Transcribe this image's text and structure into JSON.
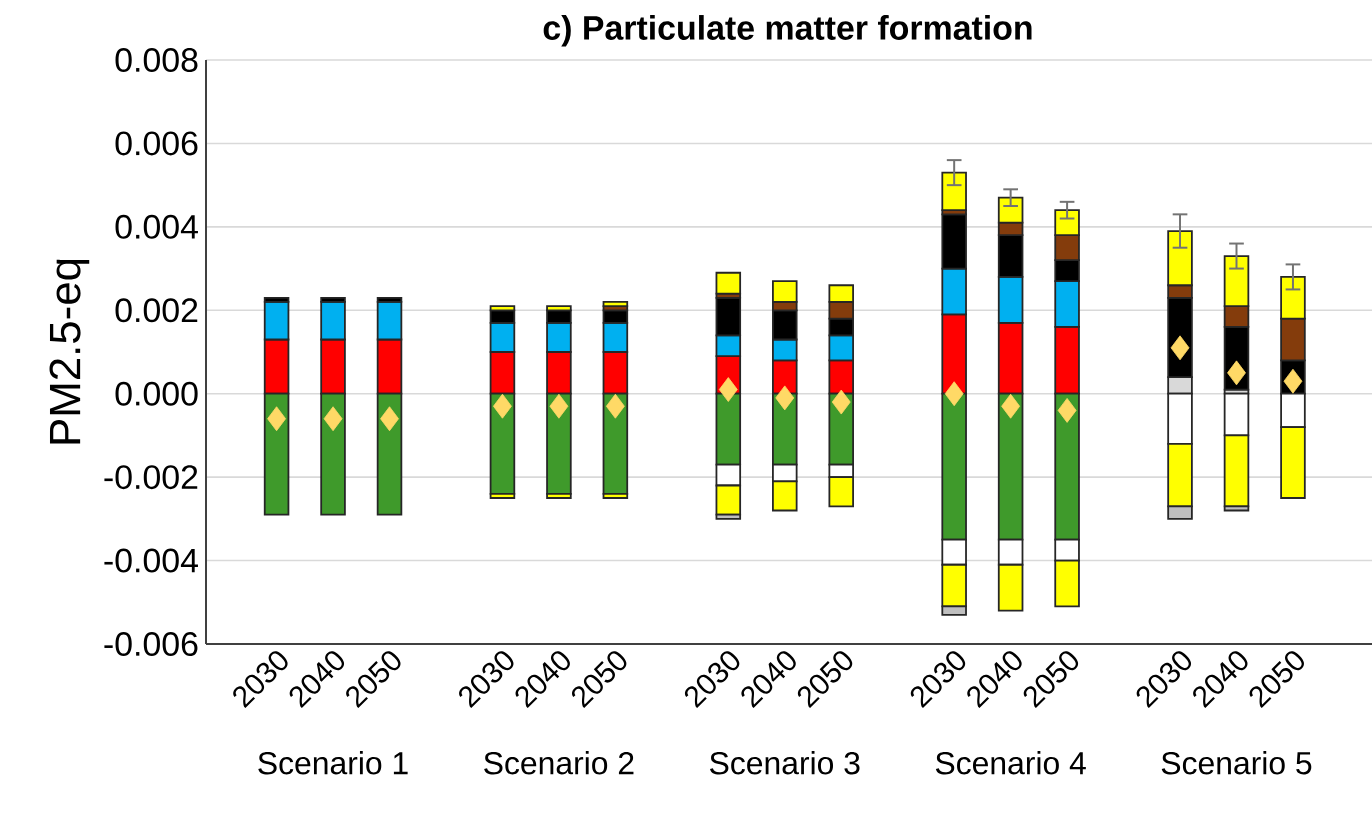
{
  "chart_data": {
    "type": "bar",
    "title": "c) Particulate matter formation",
    "ylabel": "PM2.5-eq",
    "stacked": true,
    "grid": "y",
    "marker": "diamond",
    "categories": [
      "2030",
      "2040",
      "2050",
      "2030",
      "2040",
      "2050",
      "2030",
      "2040",
      "2050",
      "2030",
      "2040",
      "2050",
      "2030",
      "2040",
      "2050"
    ],
    "annotations": [
      "Scenario 1",
      "Scenario 2",
      "Scenario 3",
      "Scenario 4",
      "Scenario 5"
    ],
    "ylim": [
      -0.006,
      0.008
    ],
    "yticks": [
      {
        "value": -0.006,
        "label": "-0.006"
      },
      {
        "value": -0.004,
        "label": "-0.004"
      },
      {
        "value": -0.002,
        "label": "-0.002"
      },
      {
        "value": 0,
        "label": "0.000"
      },
      {
        "value": 0.002,
        "label": "0.002"
      },
      {
        "value": 0.004,
        "label": "0.004"
      },
      {
        "value": 0.006,
        "label": "0.006"
      },
      {
        "value": 0.008,
        "label": "0.008"
      }
    ],
    "series": [
      {
        "color": "#d9d9d9",
        "values": [
          null,
          null,
          null,
          null,
          null,
          null,
          null,
          null,
          null,
          null,
          null,
          null,
          0.0004,
          0.0001,
          null
        ]
      },
      {
        "color": "#ff0000",
        "values": [
          0.0013,
          0.0013,
          0.0013,
          0.001,
          0.001,
          0.001,
          0.0009,
          0.0008,
          0.0008,
          0.0019,
          0.0017,
          0.0016,
          null,
          null,
          null
        ]
      },
      {
        "color": "#00b0f0",
        "values": [
          0.0009,
          0.0009,
          0.0009,
          0.0007,
          0.0007,
          0.0007,
          0.0005,
          0.0005,
          0.0006,
          0.0011,
          0.0011,
          0.0011,
          null,
          null,
          null
        ]
      },
      {
        "color": "#000000",
        "values": [
          0.0001,
          0.0001,
          0.0001,
          0.0003,
          0.0003,
          0.0003,
          0.0009,
          0.0007,
          0.0004,
          0.0013,
          0.001,
          0.0005,
          0.0019,
          0.0015,
          0.0008
        ]
      },
      {
        "color": "#843c0c",
        "values": [
          null,
          null,
          null,
          null,
          null,
          0.0001,
          0.0001,
          0.0002,
          0.0004,
          0.0001,
          0.0003,
          0.0006,
          0.0003,
          0.0005,
          0.001
        ]
      },
      {
        "color": "#ffff00",
        "values": [
          null,
          null,
          null,
          0.0001,
          0.0001,
          0.0001,
          0.0005,
          0.0005,
          0.0004,
          0.0009,
          0.0006,
          0.0006,
          0.0013,
          0.0012,
          0.001
        ],
        "errors": [
          null,
          null,
          null,
          null,
          null,
          null,
          null,
          null,
          null,
          0.0003,
          0.0002,
          0.0002,
          0.0004,
          0.0003,
          0.0003
        ]
      },
      {
        "color": "#3f9a2b",
        "values": [
          -0.0029,
          -0.0029,
          -0.0029,
          -0.0024,
          -0.0024,
          -0.0024,
          -0.0017,
          -0.0017,
          -0.0017,
          -0.0035,
          -0.0035,
          -0.0035,
          null,
          null,
          null
        ]
      },
      {
        "color": "#ffffff",
        "values": [
          null,
          null,
          null,
          null,
          null,
          null,
          -0.0005,
          -0.0004,
          -0.0003,
          -0.0006,
          -0.0006,
          -0.0005,
          -0.0012,
          -0.001,
          -0.0008
        ]
      },
      {
        "color": "#ffff00",
        "values": [
          null,
          null,
          null,
          -0.0001,
          -0.0001,
          -0.0001,
          -0.0007,
          -0.0007,
          -0.0007,
          -0.001,
          -0.0011,
          -0.0011,
          -0.0015,
          -0.0017,
          -0.0017
        ]
      },
      {
        "color": "#bfbfbf",
        "values": [
          null,
          null,
          null,
          null,
          null,
          null,
          -0.0001,
          null,
          null,
          -0.0002,
          null,
          null,
          -0.0003,
          -0.0001,
          null
        ]
      },
      {
        "type": "scatter",
        "color": "#ffd966",
        "values": [
          -0.0006,
          -0.0006,
          -0.0006,
          -0.0003,
          -0.0003,
          -0.0003,
          0.0001,
          -0.0001,
          -0.0002,
          0,
          -0.0003,
          -0.0004,
          0.0011,
          0.0005,
          0.0003
        ]
      }
    ]
  }
}
